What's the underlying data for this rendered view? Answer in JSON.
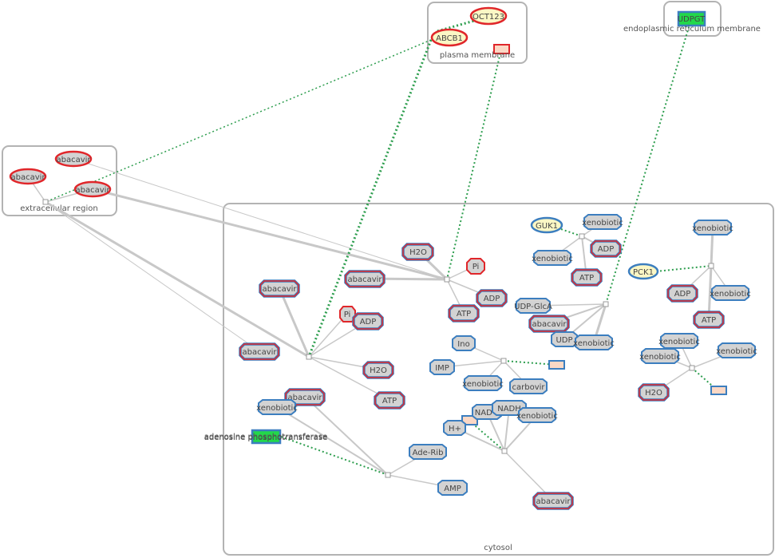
{
  "compartments": {
    "extracellular": "extracellular region",
    "plasma_membrane": "plasma membrane",
    "er_membrane": "endoplasmic reticulum membrane",
    "cytosol": "cytosol"
  },
  "labels": {
    "oct123": "OCT123",
    "abcb1": "ABCB1",
    "udpgt": "UDPGT",
    "abacavir": "abacavir",
    "h2o": "H2O",
    "pi": "Pi",
    "adp": "ADP",
    "atp": "ATP",
    "guk1": "GUK1",
    "pck1": "PCK1",
    "xenobiotic": "xenobiotic",
    "udp_glca": "UDP-GlcA",
    "udp": "UDP",
    "ino": "Ino",
    "imp": "IMP",
    "carbovir": "carbovir",
    "nad": "NAD+",
    "nadh": "NADH",
    "h_plus": "H+",
    "ade_rib": "Ade-Rib",
    "amp": "AMP",
    "adenosine_phosphotransferase": "adenosine phosphotransferase"
  },
  "colors": {
    "compartment_border": "#b3b3b3",
    "edge": "#c8c8c8",
    "catalysis": "#2e9e4f",
    "molecule_fill": "#d3d3d3",
    "protein_fill": "#fbf7c5",
    "drug_border": "#e0262a",
    "metabolite_border": "#3c7ebf",
    "active_protein": "#22d84a"
  }
}
